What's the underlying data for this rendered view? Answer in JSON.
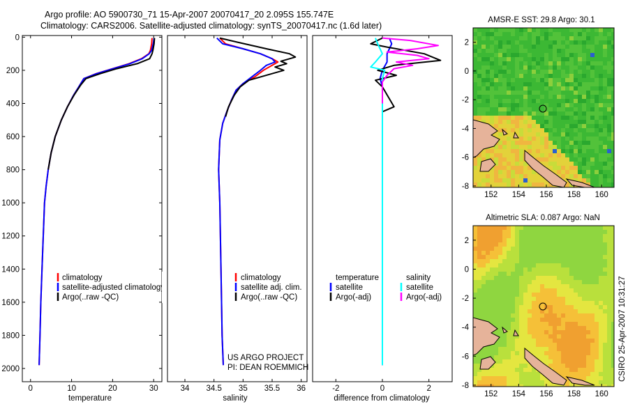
{
  "titles": {
    "line1": "Argo profile: AO 5900730_71 15-Apr-2007 20070417_20 2.095S 155.747E",
    "line2": "Climatology: CARS2006. Satellite-adjusted climatology: synTS_20070417.nc (1.6d later)"
  },
  "side_label": "CSIRO 25-Apr-2007 10:31:27",
  "credit": {
    "line1": "US ARGO PROJECT",
    "line2": "PI: DEAN ROEMMICH"
  },
  "colors": {
    "climatology": "#ff0000",
    "satellite": "#0000ff",
    "argo": "#000000",
    "salinity_sat": "#00ffff",
    "salinity_argo": "#ff00ff"
  },
  "chart_data": [
    {
      "id": "temperature",
      "type": "line",
      "xlabel": "temperature",
      "ylabel": "",
      "xlim": [
        -2,
        32
      ],
      "ylim": [
        2080,
        -10
      ],
      "xticks": [
        0,
        10,
        20,
        30
      ],
      "yticks": [
        0,
        200,
        400,
        600,
        800,
        1000,
        1200,
        1400,
        1600,
        1800,
        2000
      ],
      "legend": [
        "climatology",
        "satellite-adjusted climatology",
        "Argo(..raw -QC)"
      ],
      "series": [
        {
          "name": "climatology",
          "color": "#ff0000",
          "points": [
            [
              29.6,
              5
            ],
            [
              29.5,
              40
            ],
            [
              29.2,
              80
            ],
            [
              28.8,
              100
            ],
            [
              27.0,
              130
            ],
            [
              24.0,
              160
            ],
            [
              20.0,
              190
            ],
            [
              16.0,
              220
            ],
            [
              13.0,
              250
            ],
            [
              12.0,
              290
            ],
            [
              10.5,
              350
            ],
            [
              9.0,
              420
            ],
            [
              7.5,
              500
            ],
            [
              6.0,
              600
            ],
            [
              5.0,
              700
            ],
            [
              4.3,
              800
            ],
            [
              3.8,
              900
            ],
            [
              3.4,
              1000
            ],
            [
              3.1,
              1200
            ],
            [
              2.8,
              1400
            ],
            [
              2.5,
              1600
            ],
            [
              2.3,
              1800
            ],
            [
              2.1,
              1980
            ]
          ]
        },
        {
          "name": "satellite-adjusted climatology",
          "color": "#0000ff",
          "points": [
            [
              30.1,
              5
            ],
            [
              29.9,
              40
            ],
            [
              29.5,
              80
            ],
            [
              28.9,
              100
            ],
            [
              27.2,
              130
            ],
            [
              24.2,
              160
            ],
            [
              20.1,
              190
            ],
            [
              16.1,
              220
            ],
            [
              13.0,
              250
            ],
            [
              12.0,
              290
            ],
            [
              10.5,
              350
            ],
            [
              9.0,
              420
            ],
            [
              7.5,
              500
            ],
            [
              6.0,
              600
            ],
            [
              5.0,
              700
            ],
            [
              4.3,
              800
            ],
            [
              3.8,
              900
            ],
            [
              3.4,
              1000
            ],
            [
              3.1,
              1200
            ],
            [
              2.8,
              1400
            ],
            [
              2.5,
              1600
            ],
            [
              2.3,
              1800
            ],
            [
              2.1,
              1980
            ]
          ]
        },
        {
          "name": "Argo(..raw -QC)",
          "color": "#000000",
          "points": [
            [
              30.2,
              5
            ],
            [
              30.1,
              40
            ],
            [
              29.8,
              80
            ],
            [
              29.6,
              100
            ],
            [
              29.0,
              130
            ],
            [
              26.0,
              160
            ],
            [
              21.0,
              190
            ],
            [
              17.0,
              220
            ],
            [
              13.5,
              250
            ],
            [
              12.2,
              290
            ],
            [
              10.6,
              350
            ],
            [
              9.0,
              420
            ],
            [
              7.5,
              500
            ],
            [
              6.0,
              600
            ],
            [
              5.0,
              700
            ],
            [
              4.3,
              800
            ]
          ]
        }
      ]
    },
    {
      "id": "salinity",
      "type": "line",
      "xlabel": "salinity",
      "ylabel": "",
      "xlim": [
        33.7,
        36.1
      ],
      "ylim": [
        2080,
        -10
      ],
      "xticks": [
        34,
        34.5,
        35,
        35.5,
        36
      ],
      "legend": [
        "climatology",
        "satellite adj. clim.",
        "Argo(..raw -QC)"
      ],
      "series": [
        {
          "name": "climatology",
          "color": "#ff0000",
          "points": [
            [
              34.6,
              5
            ],
            [
              34.7,
              40
            ],
            [
              35.0,
              70
            ],
            [
              35.3,
              100
            ],
            [
              35.5,
              130
            ],
            [
              35.6,
              150
            ],
            [
              35.5,
              170
            ],
            [
              35.35,
              200
            ],
            [
              35.2,
              240
            ],
            [
              35.0,
              280
            ],
            [
              34.88,
              320
            ],
            [
              34.8,
              380
            ],
            [
              34.72,
              450
            ],
            [
              34.65,
              520
            ],
            [
              34.6,
              620
            ],
            [
              34.58,
              800
            ],
            [
              34.6,
              1000
            ],
            [
              34.62,
              1400
            ],
            [
              34.64,
              1800
            ],
            [
              34.66,
              1980
            ]
          ]
        },
        {
          "name": "satellite adj. clim.",
          "color": "#0000ff",
          "points": [
            [
              34.55,
              5
            ],
            [
              34.65,
              40
            ],
            [
              35.0,
              70
            ],
            [
              35.3,
              100
            ],
            [
              35.5,
              130
            ],
            [
              35.55,
              150
            ],
            [
              35.4,
              170
            ],
            [
              35.3,
              200
            ],
            [
              35.15,
              240
            ],
            [
              35.0,
              280
            ],
            [
              34.88,
              320
            ],
            [
              34.8,
              380
            ],
            [
              34.72,
              450
            ],
            [
              34.65,
              520
            ],
            [
              34.6,
              620
            ],
            [
              34.58,
              800
            ],
            [
              34.6,
              1000
            ],
            [
              34.62,
              1400
            ],
            [
              34.64,
              1800
            ],
            [
              34.66,
              1980
            ]
          ]
        },
        {
          "name": "Argo(..raw -QC)",
          "color": "#000000",
          "points": [
            [
              34.6,
              5
            ],
            [
              34.9,
              30
            ],
            [
              35.4,
              70
            ],
            [
              35.8,
              100
            ],
            [
              35.9,
              120
            ],
            [
              35.65,
              145
            ],
            [
              35.75,
              160
            ],
            [
              35.55,
              180
            ],
            [
              35.7,
              200
            ],
            [
              35.4,
              230
            ],
            [
              35.1,
              260
            ],
            [
              34.95,
              300
            ],
            [
              34.85,
              350
            ],
            [
              34.75,
              420
            ],
            [
              34.7,
              480
            ]
          ]
        }
      ]
    },
    {
      "id": "difference",
      "type": "line",
      "xlabel": "difference from climatology",
      "ylabel": "",
      "xlim": [
        -3.0,
        3.0
      ],
      "ylim": [
        2080,
        -10
      ],
      "xticks": [
        -2,
        0,
        2
      ],
      "legend_temperature": [
        "temperature",
        "satellite",
        "Argo(-adj)"
      ],
      "legend_salinity": [
        "salinity",
        "satellite",
        "Argo(-adj)"
      ],
      "series": [
        {
          "name": "temperature satellite",
          "color": "#0000ff",
          "points": [
            [
              0.3,
              5
            ],
            [
              0.4,
              40
            ],
            [
              0.2,
              100
            ],
            [
              0.2,
              150
            ],
            [
              0.0,
              200
            ],
            [
              -0.1,
              250
            ],
            [
              0.0,
              300
            ],
            [
              0.0,
              500
            ],
            [
              0.0,
              1000
            ],
            [
              0.0,
              1980
            ]
          ]
        },
        {
          "name": "temperature Argo(-adj)",
          "color": "#000000",
          "points": [
            [
              0.0,
              5
            ],
            [
              -0.5,
              40
            ],
            [
              0.2,
              60
            ],
            [
              1.8,
              100
            ],
            [
              2.5,
              140
            ],
            [
              0.5,
              170
            ],
            [
              -0.2,
              200
            ],
            [
              0.6,
              230
            ],
            [
              -0.3,
              260
            ],
            [
              0.0,
              300
            ],
            [
              0.5,
              420
            ],
            [
              0.0,
              450
            ],
            [
              0.0,
              600
            ]
          ]
        },
        {
          "name": "salinity satellite",
          "color": "#00ffff",
          "points": [
            [
              -0.3,
              5
            ],
            [
              -0.2,
              40
            ],
            [
              0.0,
              100
            ],
            [
              -0.3,
              150
            ],
            [
              -0.5,
              180
            ],
            [
              0.1,
              200
            ],
            [
              0.0,
              250
            ],
            [
              0.0,
              500
            ],
            [
              0.0,
              1000
            ],
            [
              0.0,
              1980
            ]
          ]
        },
        {
          "name": "salinity Argo(-adj)",
          "color": "#ff00ff",
          "points": [
            [
              0.0,
              5
            ],
            [
              1.2,
              20
            ],
            [
              2.4,
              50
            ],
            [
              1.5,
              70
            ],
            [
              0.2,
              90
            ],
            [
              1.5,
              110
            ],
            [
              2.0,
              130
            ],
            [
              0.6,
              150
            ],
            [
              1.3,
              170
            ],
            [
              0.5,
              190
            ],
            [
              0.2,
              230
            ],
            [
              0.0,
              270
            ],
            [
              0.0,
              400
            ]
          ]
        }
      ]
    }
  ],
  "maps": [
    {
      "id": "sst-map",
      "title": "AMSR-E SST: 29.8 Argo: 30.1",
      "xticks": [
        "152",
        "154",
        "156",
        "158",
        "160"
      ],
      "yticks": [
        "2",
        "0",
        "-2",
        "-4",
        "-6",
        "-8"
      ],
      "float_lon": 155.747,
      "float_lat": -2.095
    },
    {
      "id": "sla-map",
      "title": "Altimetric SLA: 0.087 Argo: NaN",
      "xticks": [
        "152",
        "154",
        "156",
        "158",
        "160"
      ],
      "yticks": [
        "2",
        "0",
        "-2",
        "-4",
        "-6",
        "-8"
      ],
      "float_lon": 155.747,
      "float_lat": -2.095
    }
  ]
}
